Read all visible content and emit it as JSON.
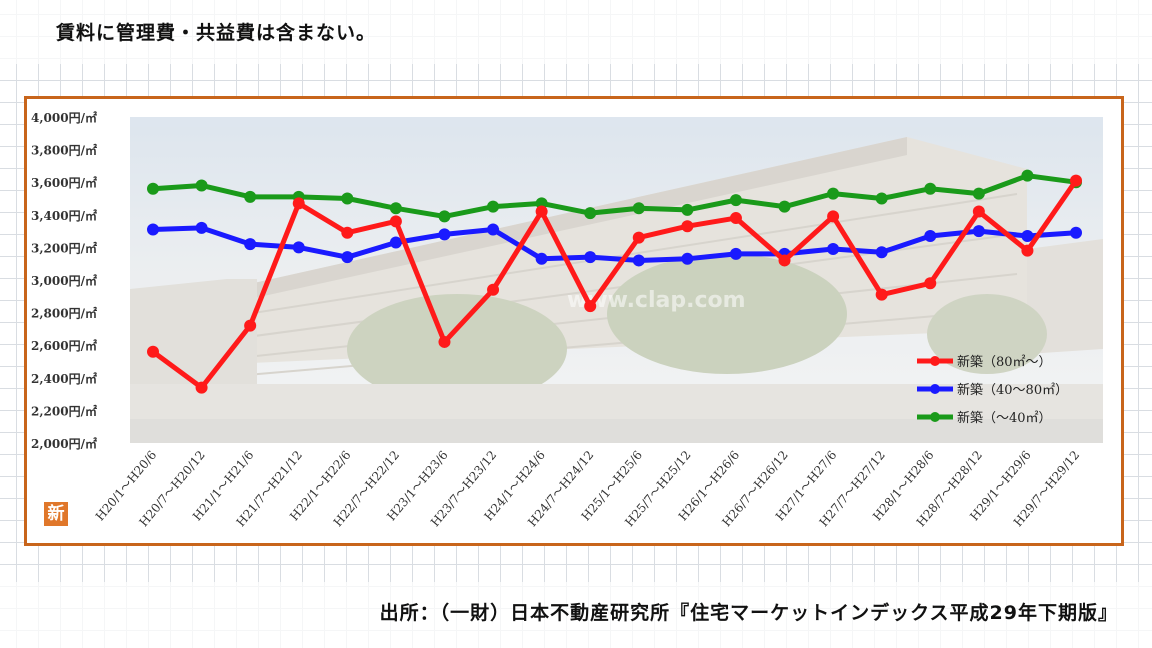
{
  "header": {
    "note": "賃料に管理費・共益費は含まない。"
  },
  "footer": {
    "source": "出所：（一財）日本不動産研究所『住宅マーケットインデックス平成29年下期版』"
  },
  "badge": {
    "text": "新"
  },
  "photo": {
    "watermark": "www.clap.com"
  },
  "colors": {
    "frame": "#c8651b",
    "red": "#ff1a1a",
    "blue": "#1a1aff",
    "green": "#1a9a1a"
  },
  "chart_data": {
    "type": "line",
    "ylim": [
      2000,
      4000
    ],
    "yticks": [
      "4,000円/㎡",
      "3,800円/㎡",
      "3,600円/㎡",
      "3,400円/㎡",
      "3,200円/㎡",
      "3,000円/㎡",
      "2,800円/㎡",
      "2,600円/㎡",
      "2,400円/㎡",
      "2,200円/㎡",
      "2,000円/㎡"
    ],
    "ytick_values": [
      4000,
      3800,
      3600,
      3400,
      3200,
      3000,
      2800,
      2600,
      2400,
      2200,
      2000
    ],
    "categories": [
      "H20/1～H20/6",
      "H20/7～H20/12",
      "H21/1～H21/6",
      "H21/7～H21/12",
      "H22/1～H22/6",
      "H22/7～H22/12",
      "H23/1～H23/6",
      "H23/7～H23/12",
      "H24/1～H24/6",
      "H24/7～H24/12",
      "H25/1～H25/6",
      "H25/7～H25/12",
      "H26/1～H26/6",
      "H26/7～H26/12",
      "H27/1～H27/6",
      "H27/7～H27/12",
      "H28/1～H28/6",
      "H28/7～H28/12",
      "H29/1～H29/6",
      "H29/7～H29/12"
    ],
    "series": [
      {
        "name": "新築（80㎡～）",
        "color": "#ff1a1a",
        "values": [
          2560,
          2340,
          2720,
          3470,
          3290,
          3360,
          2620,
          2940,
          3420,
          2840,
          3260,
          3330,
          3380,
          3120,
          3390,
          2910,
          2980,
          3420,
          3180,
          3610
        ]
      },
      {
        "name": "新築（40～80㎡）",
        "color": "#1a1aff",
        "values": [
          3310,
          3320,
          3220,
          3200,
          3140,
          3230,
          3280,
          3310,
          3130,
          3140,
          3120,
          3130,
          3160,
          3160,
          3190,
          3170,
          3270,
          3300,
          3270,
          3290
        ]
      },
      {
        "name": "新築（～40㎡）",
        "color": "#1a9a1a",
        "values": [
          3560,
          3580,
          3510,
          3510,
          3500,
          3440,
          3390,
          3450,
          3470,
          3410,
          3440,
          3430,
          3490,
          3450,
          3530,
          3500,
          3560,
          3530,
          3640,
          3600
        ]
      }
    ],
    "legend_position": "right"
  }
}
